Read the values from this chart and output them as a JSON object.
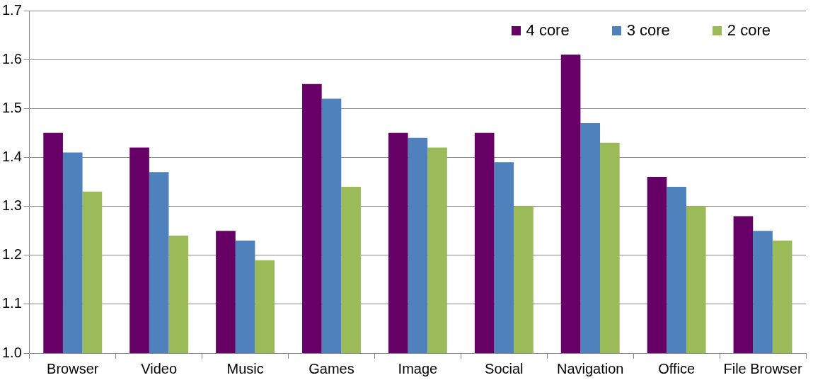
{
  "chart_data": {
    "type": "bar",
    "categories": [
      "Browser",
      "Video",
      "Music",
      "Games",
      "Image",
      "Social",
      "Navigation",
      "Office",
      "File Browser"
    ],
    "series": [
      {
        "name": "4 core",
        "color": "#660066",
        "values": [
          1.45,
          1.42,
          1.25,
          1.55,
          1.45,
          1.45,
          1.61,
          1.36,
          1.28
        ]
      },
      {
        "name": "3 core",
        "color": "#4f81bd",
        "values": [
          1.41,
          1.37,
          1.23,
          1.52,
          1.44,
          1.39,
          1.47,
          1.34,
          1.25
        ]
      },
      {
        "name": "2 core",
        "color": "#9bbb59",
        "values": [
          1.33,
          1.24,
          1.19,
          1.34,
          1.42,
          1.3,
          1.43,
          1.3,
          1.23
        ]
      }
    ],
    "ylim": [
      1.0,
      1.7
    ],
    "yticks": [
      {
        "value": 1.0,
        "label": "1.0"
      },
      {
        "value": 1.1,
        "label": "1.1"
      },
      {
        "value": 1.2,
        "label": "1.2"
      },
      {
        "value": 1.3,
        "label": "1.3"
      },
      {
        "value": 1.4,
        "label": "1.4"
      },
      {
        "value": 1.5,
        "label": "1.5"
      },
      {
        "value": 1.6,
        "label": "1.6"
      },
      {
        "value": 1.7,
        "label": "1.7"
      }
    ],
    "grid": "y",
    "legend": "top right"
  }
}
